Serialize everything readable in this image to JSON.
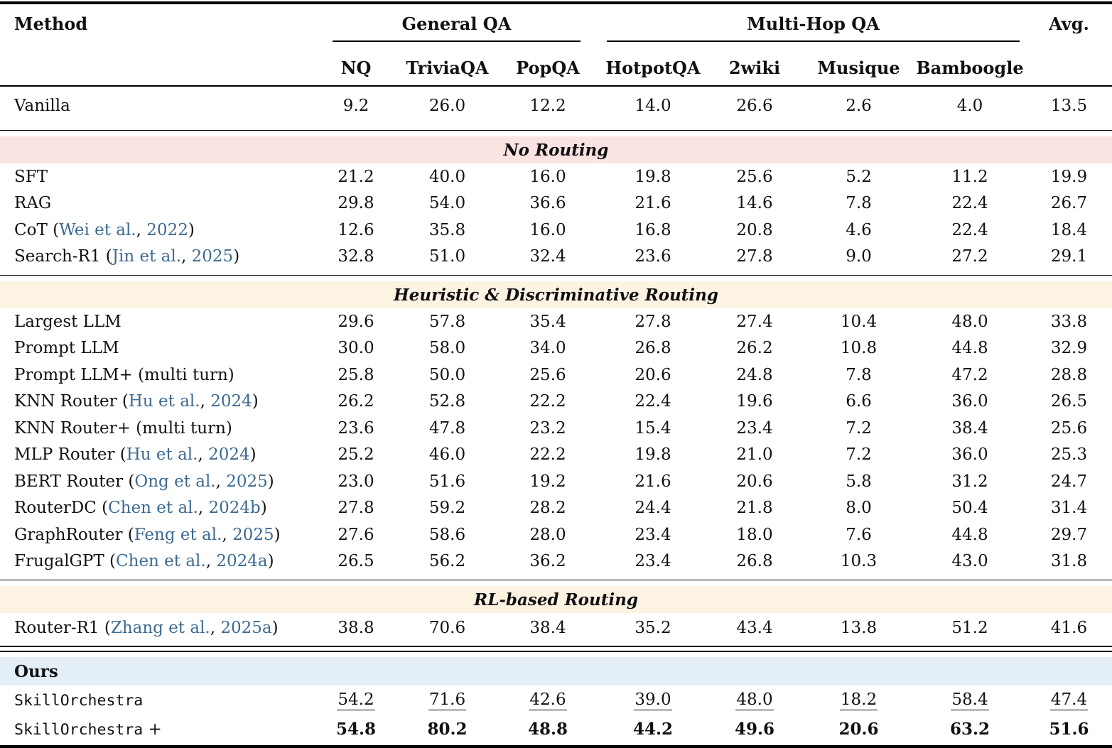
{
  "colors": {
    "no_routing_band_bg": "#fbe3e2",
    "heuristic_band_bg": "#fdf3e3",
    "rl_band_bg": "#fdf3e3",
    "ours_band_bg": "#e3eef7",
    "citation_link": "#3d6a92",
    "rule_color": "#000000"
  },
  "table": {
    "method_header": "Method",
    "avg_header": "Avg.",
    "groups": [
      {
        "label": "General QA",
        "span": 3
      },
      {
        "label": "Multi-Hop QA",
        "span": 4
      }
    ],
    "sub_headers": [
      "NQ",
      "TriviaQA",
      "PopQA",
      "HotpotQA",
      "2wiki",
      "Musique",
      "Bamboogle"
    ],
    "sections": [
      {
        "band": null,
        "rule_before": "none",
        "row_class": "tall",
        "rows": [
          {
            "parts": [
              {
                "text": "Vanilla"
              }
            ],
            "values": [
              "9.2",
              "26.0",
              "12.2",
              "14.0",
              "26.6",
              "2.6",
              "4.0",
              "13.5"
            ]
          }
        ]
      },
      {
        "band": {
          "label": "No Routing",
          "bg": "pink",
          "align": "center"
        },
        "rule_before": "thin",
        "row_class": "",
        "rows": [
          {
            "parts": [
              {
                "text": "SFT"
              }
            ],
            "values": [
              "21.2",
              "40.0",
              "16.0",
              "19.8",
              "25.6",
              "5.2",
              "11.2",
              "19.9"
            ]
          },
          {
            "parts": [
              {
                "text": "RAG"
              }
            ],
            "values": [
              "29.8",
              "54.0",
              "36.6",
              "21.6",
              "14.6",
              "7.8",
              "22.4",
              "26.7"
            ]
          },
          {
            "parts": [
              {
                "text": "CoT ("
              },
              {
                "text": "Wei et al.",
                "link": true
              },
              {
                "text": ", "
              },
              {
                "text": "2022",
                "link": true
              },
              {
                "text": ")"
              }
            ],
            "values": [
              "12.6",
              "35.8",
              "16.0",
              "16.8",
              "20.8",
              "4.6",
              "22.4",
              "18.4"
            ]
          },
          {
            "parts": [
              {
                "text": "Search-R1 ("
              },
              {
                "text": "Jin et al.",
                "link": true
              },
              {
                "text": ", "
              },
              {
                "text": "2025",
                "link": true
              },
              {
                "text": ")"
              }
            ],
            "values": [
              "32.8",
              "51.0",
              "32.4",
              "23.6",
              "27.8",
              "9.0",
              "27.2",
              "29.1"
            ]
          }
        ]
      },
      {
        "band": {
          "label": "Heuristic & Discriminative Routing",
          "bg": "cream",
          "align": "center"
        },
        "rule_before": "thin",
        "row_class": "",
        "rows": [
          {
            "parts": [
              {
                "text": "Largest LLM"
              }
            ],
            "values": [
              "29.6",
              "57.8",
              "35.4",
              "27.8",
              "27.4",
              "10.4",
              "48.0",
              "33.8"
            ]
          },
          {
            "parts": [
              {
                "text": "Prompt LLM"
              }
            ],
            "values": [
              "30.0",
              "58.0",
              "34.0",
              "26.8",
              "26.2",
              "10.8",
              "44.8",
              "32.9"
            ]
          },
          {
            "parts": [
              {
                "text": "Prompt LLM+ (multi turn)"
              }
            ],
            "values": [
              "25.8",
              "50.0",
              "25.6",
              "20.6",
              "24.8",
              "7.8",
              "47.2",
              "28.8"
            ]
          },
          {
            "parts": [
              {
                "text": "KNN Router ("
              },
              {
                "text": "Hu et al.",
                "link": true
              },
              {
                "text": ", "
              },
              {
                "text": "2024",
                "link": true
              },
              {
                "text": ")"
              }
            ],
            "values": [
              "26.2",
              "52.8",
              "22.2",
              "22.4",
              "19.6",
              "6.6",
              "36.0",
              "26.5"
            ]
          },
          {
            "parts": [
              {
                "text": "KNN Router+ (multi turn)"
              }
            ],
            "values": [
              "23.6",
              "47.8",
              "23.2",
              "15.4",
              "23.4",
              "7.2",
              "38.4",
              "25.6"
            ]
          },
          {
            "parts": [
              {
                "text": "MLP Router ("
              },
              {
                "text": "Hu et al.",
                "link": true
              },
              {
                "text": ", "
              },
              {
                "text": "2024",
                "link": true
              },
              {
                "text": ")"
              }
            ],
            "values": [
              "25.2",
              "46.0",
              "22.2",
              "19.8",
              "21.0",
              "7.2",
              "36.0",
              "25.3"
            ]
          },
          {
            "parts": [
              {
                "text": "BERT Router ("
              },
              {
                "text": "Ong et al.",
                "link": true
              },
              {
                "text": ", "
              },
              {
                "text": "2025",
                "link": true
              },
              {
                "text": ")"
              }
            ],
            "values": [
              "23.0",
              "51.6",
              "19.2",
              "21.6",
              "20.6",
              "5.8",
              "31.2",
              "24.7"
            ]
          },
          {
            "parts": [
              {
                "text": "RouterDC ("
              },
              {
                "text": "Chen et al.",
                "link": true
              },
              {
                "text": ", "
              },
              {
                "text": "2024b",
                "link": true
              },
              {
                "text": ")"
              }
            ],
            "values": [
              "27.8",
              "59.2",
              "28.2",
              "24.4",
              "21.8",
              "8.0",
              "50.4",
              "31.4"
            ]
          },
          {
            "parts": [
              {
                "text": "GraphRouter ("
              },
              {
                "text": "Feng et al.",
                "link": true
              },
              {
                "text": ", "
              },
              {
                "text": "2025",
                "link": true
              },
              {
                "text": ")"
              }
            ],
            "values": [
              "27.6",
              "58.6",
              "28.0",
              "23.4",
              "18.0",
              "7.6",
              "44.8",
              "29.7"
            ]
          },
          {
            "parts": [
              {
                "text": "FrugalGPT ("
              },
              {
                "text": "Chen et al.",
                "link": true
              },
              {
                "text": ", "
              },
              {
                "text": "2024a",
                "link": true
              },
              {
                "text": ")"
              }
            ],
            "values": [
              "26.5",
              "56.2",
              "36.2",
              "23.4",
              "26.8",
              "10.3",
              "43.0",
              "31.8"
            ]
          }
        ]
      },
      {
        "band": {
          "label": "RL-based Routing",
          "bg": "cream",
          "align": "center"
        },
        "rule_before": "thin",
        "row_class": "roomy",
        "rows": [
          {
            "parts": [
              {
                "text": "Router-R1 ("
              },
              {
                "text": "Zhang et al.",
                "link": true
              },
              {
                "text": ", "
              },
              {
                "text": "2025a",
                "link": true
              },
              {
                "text": ")"
              }
            ],
            "values": [
              "38.8",
              "70.6",
              "38.4",
              "35.2",
              "43.4",
              "13.8",
              "51.2",
              "41.6"
            ]
          }
        ]
      },
      {
        "band": {
          "label": "Ours",
          "bg": "blue",
          "align": "left"
        },
        "rule_before": "double",
        "row_class": "roomy",
        "rows": [
          {
            "parts": [
              {
                "text": "SkillOrchestra",
                "mono": true
              }
            ],
            "value_style": "underline",
            "values": [
              "54.2",
              "71.6",
              "42.6",
              "39.0",
              "48.0",
              "18.2",
              "58.4",
              "47.4"
            ]
          },
          {
            "parts": [
              {
                "text": "SkillOrchestra",
                "mono": true
              },
              {
                "text": " +"
              }
            ],
            "value_style": "bold",
            "values": [
              "54.8",
              "80.2",
              "48.8",
              "44.2",
              "49.6",
              "20.6",
              "63.2",
              "51.6"
            ]
          }
        ]
      }
    ]
  }
}
